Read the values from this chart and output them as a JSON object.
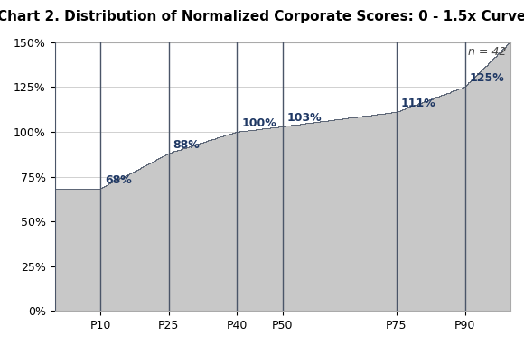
{
  "title": "Chart 2. Distribution of Normalized Corporate Scores: 0 - 1.5x Curve",
  "annotation": "n = 42",
  "categories": [
    "P10",
    "P25",
    "P40",
    "P50",
    "P75",
    "P90"
  ],
  "percentile_x": [
    10,
    25,
    40,
    50,
    75,
    90
  ],
  "percentile_values": [
    68,
    88,
    100,
    103,
    111,
    125
  ],
  "x_min": 0,
  "x_max": 100,
  "final_height": 150,
  "bar_color": "#c8c8c8",
  "bar_edge_color": "#4a5568",
  "label_color": "#1f3864",
  "title_fontsize": 11,
  "label_fontsize": 9,
  "annotation_fontsize": 9,
  "tick_fontsize": 9,
  "ylim": [
    0,
    150
  ],
  "yticks": [
    0,
    25,
    50,
    75,
    100,
    125,
    150
  ],
  "ytick_labels": [
    "0%",
    "25%",
    "50%",
    "75%",
    "100%",
    "125%",
    "150%"
  ],
  "background_color": "#ffffff",
  "grid_color": "#d0d0d0",
  "border_color": "#aaaaaa",
  "n_substeps": 40
}
